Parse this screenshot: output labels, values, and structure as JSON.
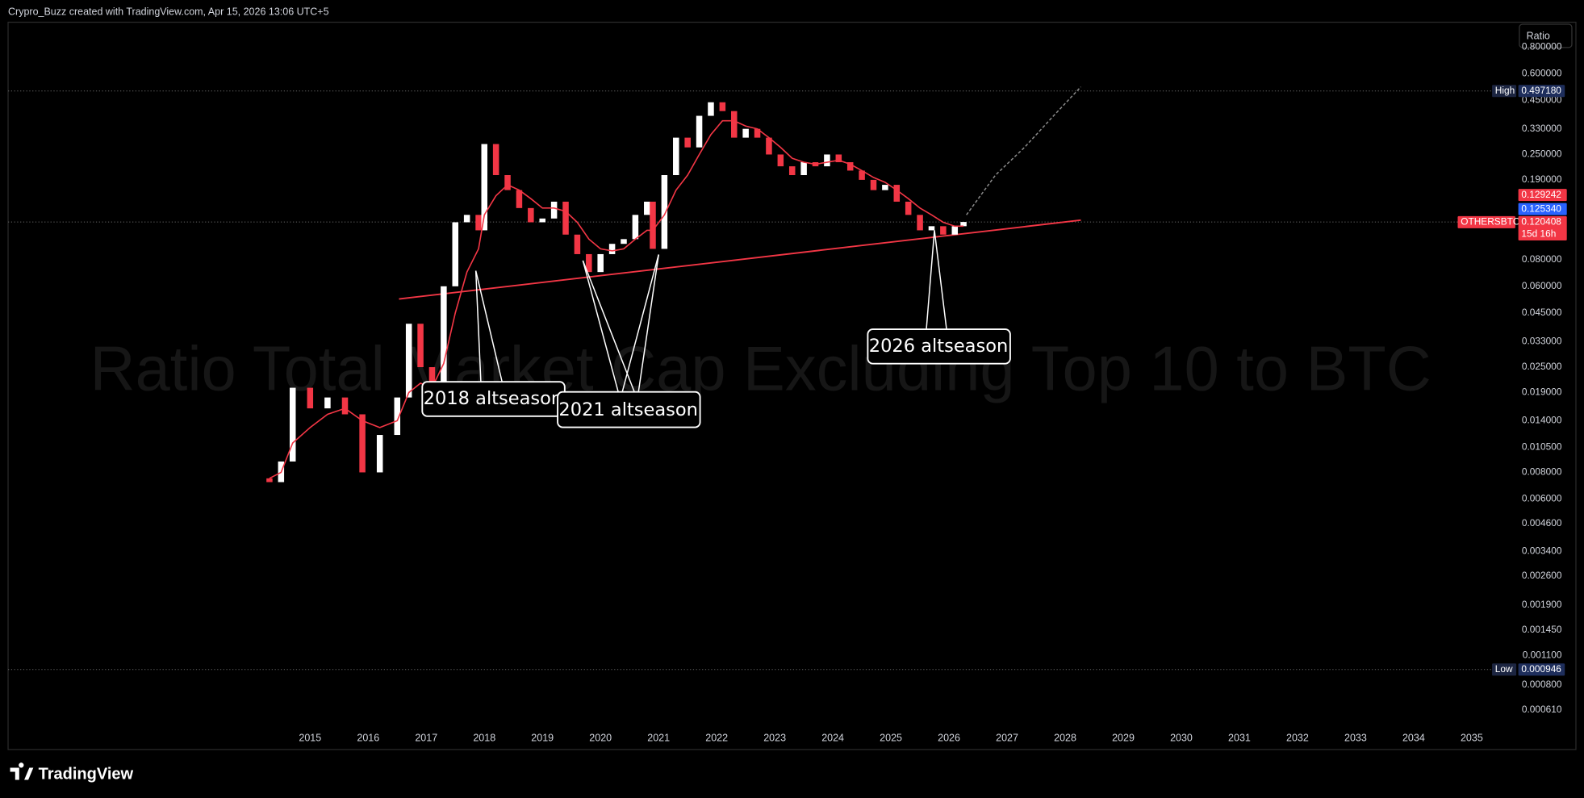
{
  "header": {
    "text": "Crypro_Buzz created with TradingView.com, Apr 15, 2026 13:06 UTC+5"
  },
  "footer": {
    "brand": "TradingView"
  },
  "toolbar": {
    "scale_button": "Ratio"
  },
  "chart_data": {
    "type": "candlestick",
    "watermark": "Ratio Total Market Cap Excluding Top 10 to BTC",
    "log_scale": true,
    "grid": false,
    "up_color": "#ffffff",
    "down_color": "#f23645",
    "xlim": [
      2009.8,
      2035.75
    ],
    "xticks": [
      2015,
      2016,
      2017,
      2018,
      2019,
      2020,
      2021,
      2022,
      2023,
      2024,
      2025,
      2026,
      2027,
      2028,
      2029,
      2030,
      2031,
      2032,
      2033,
      2034,
      2035
    ],
    "ylim": [
      0.000398,
      1.047
    ],
    "yticks": [
      {
        "value": 0.8,
        "label": "0.800000"
      },
      {
        "value": 0.6,
        "label": "0.600000"
      },
      {
        "value": 0.45,
        "label": "0.450000"
      },
      {
        "value": 0.33,
        "label": "0.330000"
      },
      {
        "value": 0.25,
        "label": "0.250000"
      },
      {
        "value": 0.19,
        "label": "0.190000"
      },
      {
        "value": 0.08,
        "label": "0.080000"
      },
      {
        "value": 0.06,
        "label": "0.060000"
      },
      {
        "value": 0.045,
        "label": "0.045000"
      },
      {
        "value": 0.033,
        "label": "0.033000"
      },
      {
        "value": 0.025,
        "label": "0.025000"
      },
      {
        "value": 0.019,
        "label": "0.019000"
      },
      {
        "value": 0.014,
        "label": "0.014000"
      },
      {
        "value": 0.0105,
        "label": "0.010500"
      },
      {
        "value": 0.008,
        "label": "0.008000"
      },
      {
        "value": 0.006,
        "label": "0.006000"
      },
      {
        "value": 0.0046,
        "label": "0.004600"
      },
      {
        "value": 0.0034,
        "label": "0.003400"
      },
      {
        "value": 0.0026,
        "label": "0.002600"
      },
      {
        "value": 0.0019,
        "label": "0.001900"
      },
      {
        "value": 0.00145,
        "label": "0.001450"
      },
      {
        "value": 0.0011,
        "label": "0.001100"
      },
      {
        "value": 0.0008,
        "label": "0.000800"
      },
      {
        "value": 0.00061,
        "label": "0.000610"
      }
    ],
    "x": [
      2014.3,
      2014.5,
      2014.7,
      2015.0,
      2015.3,
      2015.6,
      2015.9,
      2016.2,
      2016.5,
      2016.7,
      2016.9,
      2017.1,
      2017.3,
      2017.5,
      2017.7,
      2017.9,
      2018.0,
      2018.2,
      2018.4,
      2018.6,
      2018.8,
      2019.0,
      2019.2,
      2019.4,
      2019.6,
      2019.8,
      2020.0,
      2020.2,
      2020.4,
      2020.6,
      2020.8,
      2020.9,
      2021.1,
      2021.3,
      2021.5,
      2021.7,
      2021.9,
      2022.1,
      2022.3,
      2022.5,
      2022.7,
      2022.9,
      2023.1,
      2023.3,
      2023.5,
      2023.7,
      2023.9,
      2024.1,
      2024.3,
      2024.5,
      2024.7,
      2024.9,
      2025.1,
      2025.3,
      2025.5,
      2025.7,
      2025.9,
      2026.1,
      2026.25
    ],
    "open": [
      0.0075,
      0.0072,
      0.009,
      0.02,
      0.016,
      0.018,
      0.015,
      0.008,
      0.012,
      0.018,
      0.04,
      0.025,
      0.018,
      0.06,
      0.12,
      0.13,
      0.11,
      0.28,
      0.2,
      0.17,
      0.14,
      0.12,
      0.125,
      0.15,
      0.105,
      0.085,
      0.07,
      0.085,
      0.095,
      0.1,
      0.13,
      0.15,
      0.09,
      0.2,
      0.3,
      0.27,
      0.38,
      0.44,
      0.4,
      0.3,
      0.33,
      0.3,
      0.25,
      0.22,
      0.2,
      0.23,
      0.22,
      0.25,
      0.23,
      0.21,
      0.19,
      0.17,
      0.18,
      0.15,
      0.13,
      0.11,
      0.115,
      0.105,
      0.115
    ],
    "high": {
      "name": "High",
      "price": {
        "value": 0.49718,
        "label": "0.497180"
      }
    },
    "low": {
      "name": "Low",
      "price": {
        "value": 0.000946,
        "label": "0.000946"
      }
    },
    "close": [
      0.0072,
      0.009,
      0.02,
      0.016,
      0.018,
      0.015,
      0.008,
      0.012,
      0.018,
      0.04,
      0.025,
      0.018,
      0.06,
      0.12,
      0.13,
      0.11,
      0.28,
      0.2,
      0.17,
      0.14,
      0.12,
      0.125,
      0.15,
      0.105,
      0.085,
      0.07,
      0.085,
      0.095,
      0.1,
      0.13,
      0.15,
      0.09,
      0.2,
      0.3,
      0.27,
      0.38,
      0.44,
      0.4,
      0.3,
      0.33,
      0.3,
      0.25,
      0.22,
      0.2,
      0.23,
      0.22,
      0.25,
      0.23,
      0.21,
      0.19,
      0.17,
      0.18,
      0.15,
      0.13,
      0.11,
      0.115,
      0.105,
      0.115,
      0.1204
    ],
    "moving_average": {
      "color": "#f23645",
      "values": [
        0.0075,
        0.008,
        0.011,
        0.013,
        0.015,
        0.016,
        0.014,
        0.013,
        0.014,
        0.019,
        0.021,
        0.02,
        0.026,
        0.045,
        0.07,
        0.09,
        0.13,
        0.16,
        0.18,
        0.17,
        0.155,
        0.14,
        0.14,
        0.135,
        0.12,
        0.1,
        0.09,
        0.088,
        0.09,
        0.1,
        0.11,
        0.11,
        0.13,
        0.17,
        0.2,
        0.25,
        0.31,
        0.36,
        0.36,
        0.34,
        0.33,
        0.3,
        0.27,
        0.24,
        0.23,
        0.225,
        0.23,
        0.235,
        0.225,
        0.21,
        0.195,
        0.185,
        0.17,
        0.155,
        0.14,
        0.13,
        0.12,
        0.115,
        0.115
      ]
    },
    "trendline": {
      "color": "#f23645",
      "x": [
        2016.53,
        2028.27
      ],
      "y": [
        0.0523,
        0.1228
      ]
    },
    "projection": {
      "color": "#8a8a8a",
      "x": [
        2026.3,
        2026.8,
        2027.3,
        2027.8,
        2028.27
      ],
      "y": [
        0.13,
        0.2,
        0.27,
        0.38,
        0.52
      ]
    },
    "annotations": [
      "2018 altseason",
      "2021 altseason",
      "2026 altseason"
    ],
    "last": {
      "symbol": "OTHERSBTC",
      "price": {
        "value": 0.120408,
        "label": "0.120408"
      },
      "countdown": "15d 16h",
      "color": "#f23645"
    },
    "marker_prices": [
      {
        "value": 0.129242,
        "label": "0.129242",
        "color": "#f23645"
      },
      {
        "value": 0.12534,
        "label": "0.125340",
        "color": "#2962ff"
      }
    ]
  }
}
